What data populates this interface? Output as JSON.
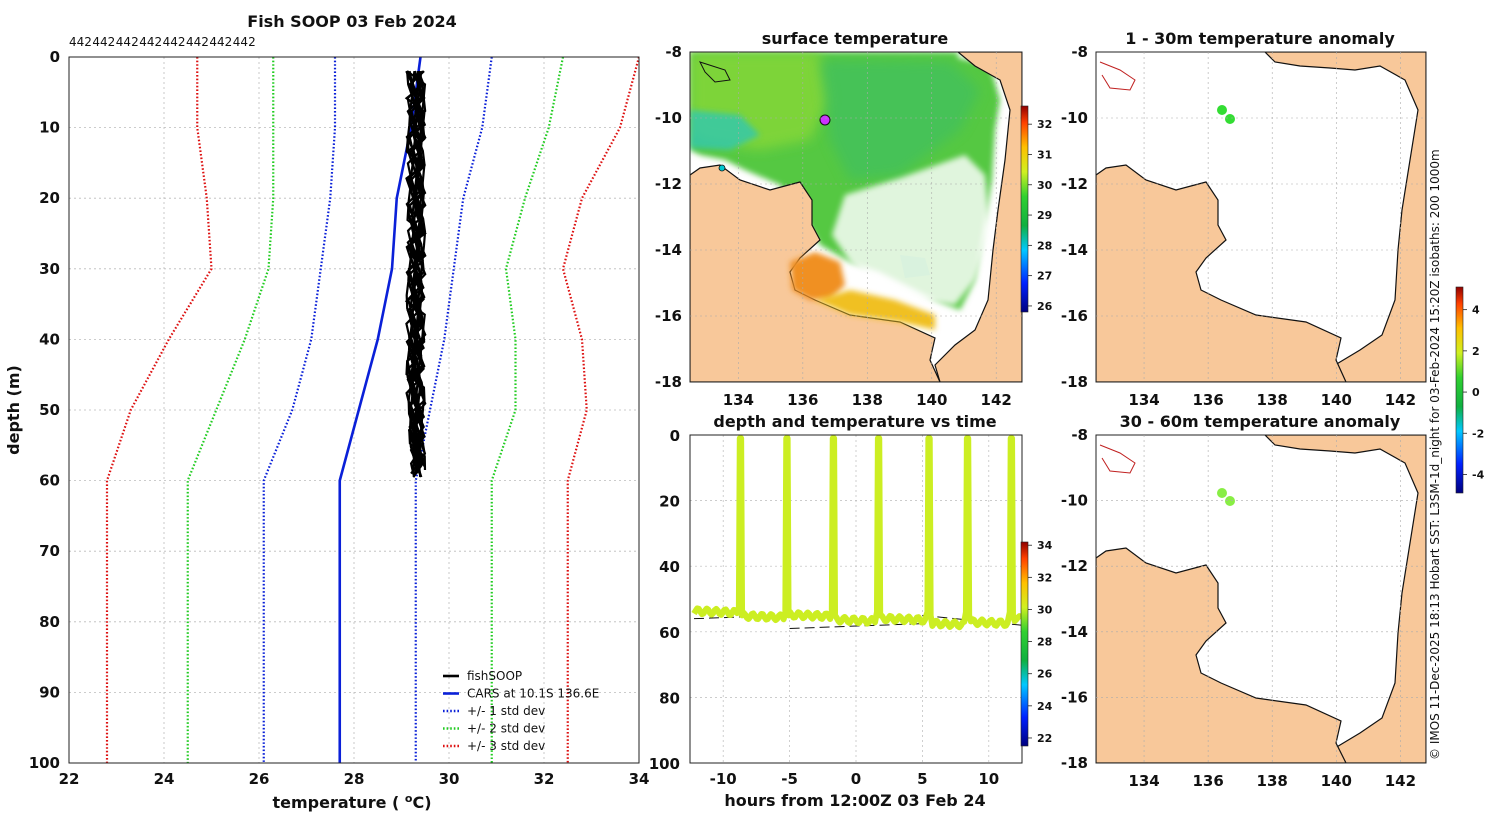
{
  "credit": "© IMOS 11-Dec-2025 18:13 Hobart SST: L3SM-1d_night for 03-Feb-2024 15:20Z isobaths: 200  1000m",
  "colors": {
    "land": "#f8c89a",
    "obs": "black",
    "cars": "#0a20d8",
    "std1": "#0a20d8",
    "std2": "#22cc22",
    "std3": "#dd1111",
    "trace": "#ccee22"
  },
  "chart_data": [
    {
      "type": "line",
      "title": "Fish SOOP 03 Feb 2024",
      "xlabel": "temperature (°C)",
      "ylabel": "depth (m)",
      "xlim": [
        22,
        34
      ],
      "ylim": [
        0,
        100
      ],
      "y_reversed": true,
      "xticks": [
        "22",
        "24",
        "26",
        "28",
        "30",
        "32",
        "34"
      ],
      "yticks": [
        "0",
        "10",
        "20",
        "30",
        "40",
        "50",
        "60",
        "70",
        "80",
        "90",
        "100"
      ],
      "profile_ids": [
        "442",
        "442",
        "442",
        "442",
        "442",
        "442",
        "442",
        "442"
      ],
      "legend": [
        "fishSOOP",
        "CARS at 10.1S 136.6E",
        "+/- 1 std dev",
        "+/- 2 std dev",
        "+/- 3 std dev"
      ],
      "depths": [
        0,
        10,
        20,
        30,
        40,
        50,
        60,
        100
      ],
      "cars_mean": [
        29.4,
        29.2,
        28.9,
        28.8,
        28.5,
        28.1,
        27.7,
        27.7
      ],
      "std1_low": [
        27.6,
        27.6,
        27.5,
        27.3,
        27.1,
        26.7,
        26.1,
        26.1
      ],
      "std1_high": [
        30.9,
        30.7,
        30.3,
        30.1,
        29.9,
        29.6,
        29.3,
        29.3
      ],
      "std2_low": [
        26.3,
        26.3,
        26.3,
        26.2,
        25.7,
        25.1,
        24.5,
        24.5
      ],
      "std2_high": [
        32.4,
        32.1,
        31.6,
        31.2,
        31.4,
        31.4,
        30.9,
        30.9
      ],
      "std3_low": [
        24.7,
        24.7,
        24.9,
        25.0,
        24.1,
        23.3,
        22.8,
        22.8
      ],
      "std3_high": [
        34.0,
        33.6,
        32.8,
        32.4,
        32.8,
        32.9,
        32.5,
        32.5
      ],
      "obs_depths": [
        2,
        10,
        20,
        30,
        40,
        50,
        58
      ],
      "obs_min": [
        29.1,
        29.1,
        29.1,
        29.1,
        29.1,
        29.1,
        29.2
      ],
      "obs_max": [
        29.5,
        29.5,
        29.5,
        29.5,
        29.5,
        29.5,
        29.5
      ]
    },
    {
      "type": "heatmap",
      "title": "surface temperature",
      "xticks": [
        "134",
        "136",
        "138",
        "140",
        "142"
      ],
      "yticks": [
        "-8",
        "-10",
        "-12",
        "-14",
        "-16",
        "-18"
      ],
      "colorbar_ticks": [
        "32",
        "31",
        "30",
        "29",
        "28",
        "27",
        "26"
      ],
      "colorbar_range": [
        25.8,
        32.6
      ]
    },
    {
      "type": "scatter",
      "title": "depth and temperature vs time",
      "xlabel": "hours from 12:00Z 03 Feb 24",
      "xticks": [
        "-10",
        "-5",
        "0",
        "5",
        "10"
      ],
      "yticks": [
        "0",
        "20",
        "40",
        "60",
        "80",
        "100"
      ],
      "xlim": [
        -12.5,
        12.5
      ],
      "ylim": [
        0,
        100
      ],
      "surface_hours": [
        -8.7,
        -5.2,
        -1.7,
        1.7,
        5.5,
        8.4,
        11.7
      ],
      "bottom_depth_start": 54,
      "bottom_depth_end": 58,
      "colorbar_ticks": [
        "34",
        "32",
        "30",
        "28",
        "26",
        "24",
        "22"
      ],
      "colorbar_range": [
        21.5,
        34.2
      ]
    },
    {
      "type": "heatmap",
      "title": "1 - 30m temperature anomaly",
      "xticks": [
        "134",
        "136",
        "138",
        "140",
        "142"
      ],
      "yticks": [
        "-8",
        "-10",
        "-12",
        "-14",
        "-16",
        "-18"
      ]
    },
    {
      "type": "heatmap",
      "title": "30 - 60m temperature anomaly",
      "xticks": [
        "134",
        "136",
        "138",
        "140",
        "142"
      ],
      "yticks": [
        "-8",
        "-10",
        "-12",
        "-14",
        "-16",
        "-18"
      ],
      "colorbar_ticks": [
        "4",
        "2",
        "0",
        "-2",
        "-4"
      ],
      "colorbar_range": [
        -4.9,
        5.1
      ]
    }
  ]
}
